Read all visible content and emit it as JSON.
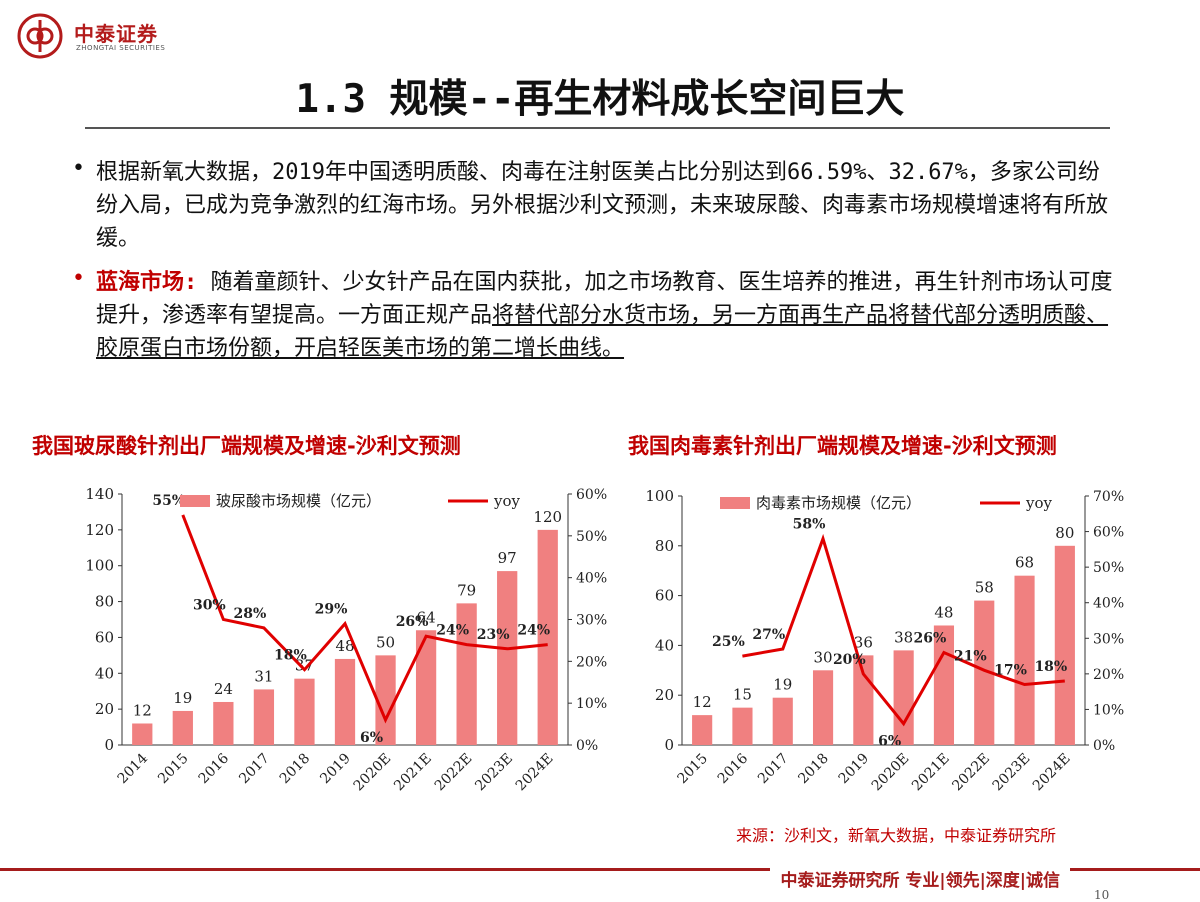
{
  "header": {
    "logo_cn": "中泰证券",
    "logo_en": "ZHONGTAI SECURITIES",
    "title": "1.3 规模--再生材料成长空间巨大"
  },
  "paragraphs": {
    "p1": "根据新氧大数据，2019年中国透明质酸、肉毒在注射医美占比分别达到66.59%、32.67%，多家公司纷纷入局，已成为竞争激烈的红海市场。另外根据沙利文预测，未来玻尿酸、肉毒素市场规模增速将有所放缓。",
    "p2_emph": "蓝海市场:",
    "p2_rest": " 随着童颜针、少女针产品在国内获批，加之市场教育、医生培养的推进，再生针剂市场认可度提升，渗透率有望提高。一方面正规产品",
    "p2_ul": "将替代部分水货市场，另一方面再生产品将替代部分透明质酸、胶原蛋白市场份额，开启轻医美市场的第二增长曲线。"
  },
  "colors": {
    "bar": "#f08080",
    "line": "#e00000",
    "accent": "#c00000",
    "footer": "#a51c1c"
  },
  "chart_data": [
    {
      "type": "bar",
      "title": "我国玻尿酸针剂出厂端规模及增速-沙利文预测",
      "categories": [
        "2014",
        "2015",
        "2016",
        "2017",
        "2018",
        "2019",
        "2020E",
        "2021E",
        "2022E",
        "2023E",
        "2024E"
      ],
      "series": [
        {
          "name": "玻尿酸市场规模（亿元）",
          "type": "bar",
          "axis": "left",
          "values": [
            12,
            19,
            24,
            31,
            37,
            48,
            50,
            64,
            79,
            97,
            120
          ]
        },
        {
          "name": "yoy",
          "type": "line",
          "axis": "right",
          "values": [
            null,
            55,
            30,
            28,
            18,
            29,
            6,
            26,
            24,
            23,
            24
          ]
        }
      ],
      "y_left": {
        "min": 0,
        "max": 140,
        "ticks": [
          "0",
          "20",
          "40",
          "60",
          "80",
          "100",
          "120",
          "140"
        ]
      },
      "y_right": {
        "min": 0,
        "max": 60,
        "ticks": [
          "0%",
          "10%",
          "20%",
          "30%",
          "40%",
          "50%",
          "60%"
        ]
      },
      "legend": "top",
      "grid": false
    },
    {
      "type": "bar",
      "title": "我国肉毒素针剂出厂端规模及增速-沙利文预测",
      "categories": [
        "2015",
        "2016",
        "2017",
        "2018",
        "2019",
        "2020E",
        "2021E",
        "2022E",
        "2023E",
        "2024E"
      ],
      "series": [
        {
          "name": "肉毒素市场规模（亿元）",
          "type": "bar",
          "axis": "left",
          "values": [
            12,
            15,
            19,
            30,
            36,
            38,
            48,
            58,
            68,
            80
          ]
        },
        {
          "name": "yoy",
          "type": "line",
          "axis": "right",
          "values": [
            null,
            25,
            27,
            58,
            20,
            6,
            26,
            21,
            17,
            18
          ]
        }
      ],
      "y_left": {
        "min": 0,
        "max": 100,
        "ticks": [
          "0",
          "20",
          "40",
          "60",
          "80",
          "100"
        ]
      },
      "y_right": {
        "min": 0,
        "max": 70,
        "ticks": [
          "0%",
          "10%",
          "20%",
          "30%",
          "40%",
          "50%",
          "60%",
          "70%"
        ]
      },
      "legend": "top",
      "grid": false
    }
  ],
  "source": "来源：沙利文，新氧大数据，中泰证券研究所",
  "footer": {
    "text": "中泰证券研究所 专业|领先|深度|诚信",
    "page": "10"
  }
}
